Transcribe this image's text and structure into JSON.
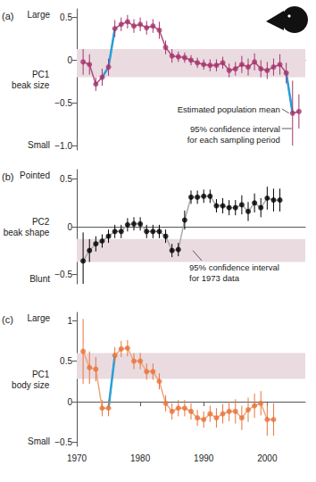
{
  "chart_data": [
    {
      "type": "line",
      "label": "(a)",
      "ylabel": "PC1\nbeak size",
      "y_top_label": "Large",
      "y_bottom_label": "Small",
      "annotations": [
        "Estimated population mean",
        "95% confidence interval\nfor each sampling period"
      ],
      "color": "#a6336b",
      "marker": "circle",
      "grid": false,
      "tick_labels": "y",
      "x": [
        1971,
        1972,
        1973,
        1974,
        1975,
        1976,
        1977,
        1978,
        1979,
        1980,
        1981,
        1982,
        1983,
        1984,
        1985,
        1986,
        1987,
        1988,
        1989,
        1990,
        1991,
        1992,
        1993,
        1994,
        1995,
        1996,
        1997,
        1998,
        1999,
        2000,
        2001,
        2002,
        2003,
        2004,
        2005
      ],
      "values": [
        -0.02,
        -0.05,
        -0.28,
        -0.2,
        -0.08,
        0.37,
        0.42,
        0.45,
        0.4,
        0.42,
        0.38,
        0.4,
        0.35,
        0.15,
        0.05,
        0.04,
        0.03,
        0.0,
        -0.03,
        -0.05,
        -0.06,
        -0.06,
        -0.03,
        -0.12,
        -0.1,
        -0.05,
        -0.08,
        -0.02,
        -0.1,
        -0.12,
        -0.08,
        -0.05,
        -0.15,
        -0.62,
        -0.6
      ],
      "errors": [
        0.15,
        0.12,
        0.08,
        0.1,
        0.1,
        0.1,
        0.08,
        0.08,
        0.08,
        0.08,
        0.08,
        0.08,
        0.1,
        0.08,
        0.08,
        0.06,
        0.06,
        0.06,
        0.06,
        0.06,
        0.07,
        0.07,
        0.07,
        0.08,
        0.08,
        0.1,
        0.1,
        0.1,
        0.1,
        0.1,
        0.1,
        0.12,
        0.12,
        0.38,
        0.2
      ],
      "highlight": [
        [
          1974,
          1976
        ],
        [
          2003,
          2004
        ]
      ],
      "band": [
        -0.2,
        0.13
      ],
      "xlim": [
        1970,
        2006
      ],
      "ylim": [
        -1.05,
        0.6
      ],
      "yticks": [
        {
          "value": -1,
          "label": "−1.0"
        },
        {
          "value": -0.5,
          "label": "−0.5"
        },
        0,
        0.5
      ]
    },
    {
      "type": "line",
      "label": "(b)",
      "ylabel": "PC2\nbeak shape",
      "y_top_label": "Pointed",
      "y_bottom_label": "Blunt",
      "annotations": [
        "95% confidence interval\nfor 1973 data"
      ],
      "color": "#000000",
      "marker": "circle",
      "grid": false,
      "tick_labels": "y",
      "x": [
        1971,
        1972,
        1973,
        1974,
        1975,
        1976,
        1977,
        1978,
        1979,
        1980,
        1981,
        1982,
        1983,
        1984,
        1985,
        1986,
        1987,
        1988,
        1989,
        1990,
        1991,
        1992,
        1993,
        1994,
        1995,
        1996,
        1997,
        1998,
        1999,
        2000,
        2001,
        2002
      ],
      "values": [
        -0.36,
        -0.25,
        -0.18,
        -0.15,
        -0.1,
        -0.05,
        -0.05,
        0.02,
        0.03,
        0.03,
        -0.05,
        -0.05,
        -0.05,
        -0.1,
        -0.25,
        -0.24,
        0.07,
        0.31,
        0.31,
        0.32,
        0.32,
        0.22,
        0.22,
        0.2,
        0.2,
        0.23,
        0.16,
        0.25,
        0.2,
        0.3,
        0.28,
        0.28
      ],
      "errors": [
        0.3,
        0.12,
        0.08,
        0.07,
        0.07,
        0.07,
        0.07,
        0.07,
        0.07,
        0.07,
        0.07,
        0.07,
        0.07,
        0.07,
        0.07,
        0.07,
        0.1,
        0.07,
        0.07,
        0.07,
        0.07,
        0.07,
        0.08,
        0.08,
        0.08,
        0.1,
        0.1,
        0.1,
        0.1,
        0.12,
        0.12,
        0.12
      ],
      "highlight": [],
      "band": [
        -0.37,
        -0.13
      ],
      "xlim": [
        1970,
        2006
      ],
      "ylim": [
        -0.6,
        0.6
      ],
      "yticks": [
        {
          "value": -0.5,
          "label": "−0.5"
        },
        0,
        0.5
      ]
    },
    {
      "type": "line",
      "label": "(c)",
      "ylabel": "PC1\nbody size",
      "y_top_label": "Large",
      "y_bottom_label": "Small",
      "annotations": [],
      "color": "#e8743b",
      "marker": "circle",
      "grid": false,
      "x": [
        1971,
        1972,
        1973,
        1974,
        1975,
        1976,
        1977,
        1978,
        1979,
        1980,
        1981,
        1982,
        1983,
        1984,
        1985,
        1986,
        1987,
        1988,
        1989,
        1990,
        1991,
        1992,
        1993,
        1994,
        1995,
        1996,
        1997,
        1998,
        1999,
        2000,
        2001
      ],
      "values": [
        0.62,
        0.42,
        0.4,
        -0.08,
        -0.08,
        0.57,
        0.65,
        0.66,
        0.5,
        0.5,
        0.37,
        0.37,
        0.25,
        -0.02,
        -0.12,
        -0.08,
        -0.08,
        -0.12,
        -0.2,
        -0.22,
        -0.15,
        -0.2,
        -0.15,
        -0.12,
        -0.12,
        -0.2,
        -0.1,
        -0.05,
        -0.02,
        -0.22,
        -0.22
      ],
      "errors": [
        0.4,
        0.2,
        0.15,
        0.1,
        0.1,
        0.1,
        0.1,
        0.1,
        0.1,
        0.1,
        0.1,
        0.1,
        0.1,
        0.1,
        0.1,
        0.1,
        0.1,
        0.1,
        0.1,
        0.1,
        0.1,
        0.12,
        0.12,
        0.12,
        0.15,
        0.15,
        0.15,
        0.15,
        0.15,
        0.2,
        0.2
      ],
      "highlight": [
        [
          1975,
          1976
        ]
      ],
      "band": [
        0.28,
        0.6
      ],
      "xlim": [
        1970,
        2006
      ],
      "ylim": [
        -0.55,
        1.1
      ],
      "xticks": [
        1970,
        1980,
        1990,
        2000
      ],
      "yticks": [
        {
          "value": -0.5,
          "label": "−0.5"
        },
        0,
        0.5,
        1
      ]
    }
  ]
}
